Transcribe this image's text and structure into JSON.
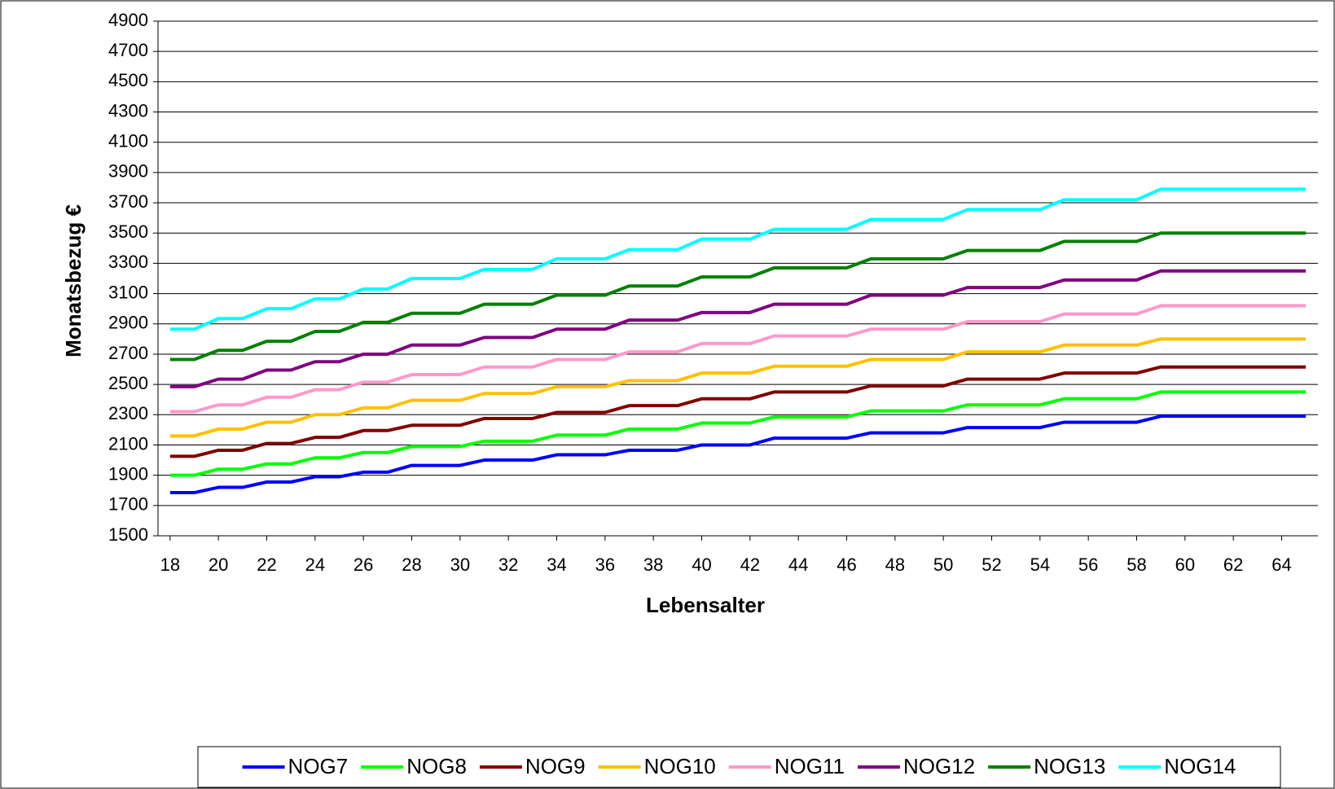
{
  "chart_data": {
    "type": "line",
    "x_label": "Lebensalter",
    "y_label": "Monatsbezug €",
    "x": [
      18,
      19,
      20,
      21,
      22,
      23,
      24,
      25,
      26,
      27,
      28,
      29,
      30,
      31,
      32,
      33,
      34,
      35,
      36,
      37,
      38,
      39,
      40,
      41,
      42,
      43,
      44,
      45,
      46,
      47,
      48,
      49,
      50,
      51,
      52,
      53,
      54,
      55,
      56,
      57,
      58,
      59,
      60,
      61,
      62,
      63,
      64,
      65
    ],
    "xlim": [
      17.5,
      65.5
    ],
    "xticks": [
      18,
      20,
      22,
      24,
      26,
      28,
      30,
      32,
      34,
      36,
      38,
      40,
      42,
      44,
      46,
      48,
      50,
      52,
      54,
      56,
      58,
      60,
      62,
      64
    ],
    "ylim": [
      1500,
      4900
    ],
    "yticks": [
      1500,
      1700,
      1900,
      2100,
      2300,
      2500,
      2700,
      2900,
      3100,
      3300,
      3500,
      3700,
      3900,
      4100,
      4300,
      4500,
      4700,
      4900
    ],
    "grid": true,
    "legend": "bottom",
    "series": [
      {
        "name": "NOG7",
        "color": "#0000ff",
        "values": [
          1785,
          1785,
          1820,
          1820,
          1855,
          1855,
          1890,
          1890,
          1920,
          1920,
          1965,
          1965,
          1965,
          2000,
          2000,
          2000,
          2035,
          2035,
          2035,
          2065,
          2065,
          2065,
          2100,
          2100,
          2100,
          2145,
          2145,
          2145,
          2145,
          2180,
          2180,
          2180,
          2180,
          2215,
          2215,
          2215,
          2215,
          2250,
          2250,
          2250,
          2250,
          2290,
          2290,
          2290,
          2290,
          2290,
          2290,
          2290
        ]
      },
      {
        "name": "NOG8",
        "color": "#00ff00",
        "values": [
          1900,
          1900,
          1940,
          1940,
          1975,
          1975,
          2015,
          2015,
          2050,
          2050,
          2090,
          2090,
          2090,
          2125,
          2125,
          2125,
          2165,
          2165,
          2165,
          2205,
          2205,
          2205,
          2245,
          2245,
          2245,
          2285,
          2285,
          2285,
          2285,
          2325,
          2325,
          2325,
          2325,
          2365,
          2365,
          2365,
          2365,
          2405,
          2405,
          2405,
          2405,
          2450,
          2450,
          2450,
          2450,
          2450,
          2450,
          2450
        ]
      },
      {
        "name": "NOG9",
        "color": "#800000",
        "values": [
          2025,
          2025,
          2065,
          2065,
          2110,
          2110,
          2150,
          2150,
          2195,
          2195,
          2230,
          2230,
          2230,
          2275,
          2275,
          2275,
          2315,
          2315,
          2315,
          2360,
          2360,
          2360,
          2405,
          2405,
          2405,
          2450,
          2450,
          2450,
          2450,
          2490,
          2490,
          2490,
          2490,
          2535,
          2535,
          2535,
          2535,
          2575,
          2575,
          2575,
          2575,
          2615,
          2615,
          2615,
          2615,
          2615,
          2615,
          2615
        ]
      },
      {
        "name": "NOG10",
        "color": "#ffc000",
        "values": [
          2160,
          2160,
          2205,
          2205,
          2250,
          2250,
          2300,
          2300,
          2345,
          2345,
          2395,
          2395,
          2395,
          2440,
          2440,
          2440,
          2485,
          2485,
          2485,
          2525,
          2525,
          2525,
          2575,
          2575,
          2575,
          2620,
          2620,
          2620,
          2620,
          2665,
          2665,
          2665,
          2665,
          2715,
          2715,
          2715,
          2715,
          2760,
          2760,
          2760,
          2760,
          2800,
          2800,
          2800,
          2800,
          2800,
          2800,
          2800
        ]
      },
      {
        "name": "NOG11",
        "color": "#ff99cc",
        "values": [
          2320,
          2320,
          2365,
          2365,
          2415,
          2415,
          2465,
          2465,
          2515,
          2515,
          2565,
          2565,
          2565,
          2615,
          2615,
          2615,
          2665,
          2665,
          2665,
          2715,
          2715,
          2715,
          2770,
          2770,
          2770,
          2820,
          2820,
          2820,
          2820,
          2865,
          2865,
          2865,
          2865,
          2915,
          2915,
          2915,
          2915,
          2965,
          2965,
          2965,
          2965,
          3020,
          3020,
          3020,
          3020,
          3020,
          3020,
          3020
        ]
      },
      {
        "name": "NOG12",
        "color": "#800080",
        "values": [
          2485,
          2485,
          2535,
          2535,
          2595,
          2595,
          2650,
          2650,
          2700,
          2700,
          2760,
          2760,
          2760,
          2810,
          2810,
          2810,
          2865,
          2865,
          2865,
          2925,
          2925,
          2925,
          2975,
          2975,
          2975,
          3030,
          3030,
          3030,
          3030,
          3090,
          3090,
          3090,
          3090,
          3140,
          3140,
          3140,
          3140,
          3190,
          3190,
          3190,
          3190,
          3250,
          3250,
          3250,
          3250,
          3250,
          3250,
          3250
        ]
      },
      {
        "name": "NOG13",
        "color": "#008000",
        "values": [
          2665,
          2665,
          2725,
          2725,
          2785,
          2785,
          2850,
          2850,
          2910,
          2910,
          2970,
          2970,
          2970,
          3030,
          3030,
          3030,
          3090,
          3090,
          3090,
          3150,
          3150,
          3150,
          3210,
          3210,
          3210,
          3270,
          3270,
          3270,
          3270,
          3330,
          3330,
          3330,
          3330,
          3385,
          3385,
          3385,
          3385,
          3445,
          3445,
          3445,
          3445,
          3500,
          3500,
          3500,
          3500,
          3500,
          3500,
          3500
        ]
      },
      {
        "name": "NOG14",
        "color": "#00ffff",
        "values": [
          2865,
          2865,
          2935,
          2935,
          3000,
          3000,
          3065,
          3065,
          3130,
          3130,
          3200,
          3200,
          3200,
          3260,
          3260,
          3260,
          3330,
          3330,
          3330,
          3390,
          3390,
          3390,
          3460,
          3460,
          3460,
          3525,
          3525,
          3525,
          3525,
          3590,
          3590,
          3590,
          3590,
          3655,
          3655,
          3655,
          3655,
          3720,
          3720,
          3720,
          3720,
          3790,
          3790,
          3790,
          3790,
          3790,
          3790,
          3790
        ]
      }
    ]
  }
}
